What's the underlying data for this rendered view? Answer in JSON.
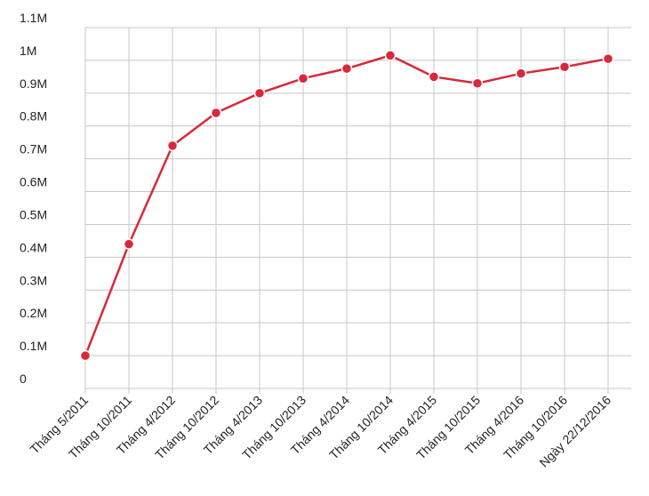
{
  "chart_data": {
    "type": "line",
    "categories": [
      "Tháng 5/2011",
      "Tháng 10/2011",
      "Tháng 4/2012",
      "Tháng 10/2012",
      "Tháng 4/2013",
      "Tháng 10/2013",
      "Tháng 4/2014",
      "Tháng 10/2014",
      "Tháng 4/2015",
      "Tháng 10/2015",
      "Tháng 4/2016",
      "Tháng 10/2016",
      "Ngày 22/12/2016"
    ],
    "values": [
      100000,
      440000,
      740000,
      840000,
      900000,
      945000,
      975000,
      1015000,
      950000,
      930000,
      960000,
      980000,
      1005000
    ],
    "color": "#d9283a",
    "ylim": [
      0,
      1100000
    ],
    "yticks": [
      0,
      {
        "value": 100000,
        "label": "0.1M"
      },
      {
        "value": 200000,
        "label": "0.2M"
      },
      {
        "value": 300000,
        "label": "0.3M"
      },
      {
        "value": 400000,
        "label": "0.4M"
      },
      {
        "value": 500000,
        "label": "0.5M"
      },
      {
        "value": 600000,
        "label": "0.6M"
      },
      {
        "value": 700000,
        "label": "0.7M"
      },
      {
        "value": 800000,
        "label": "0.8M"
      },
      {
        "value": 900000,
        "label": "0.9M"
      },
      {
        "value": 1000000,
        "label": "1M"
      },
      {
        "value": 1100000,
        "label": "1.1M"
      }
    ],
    "grid": true
  }
}
